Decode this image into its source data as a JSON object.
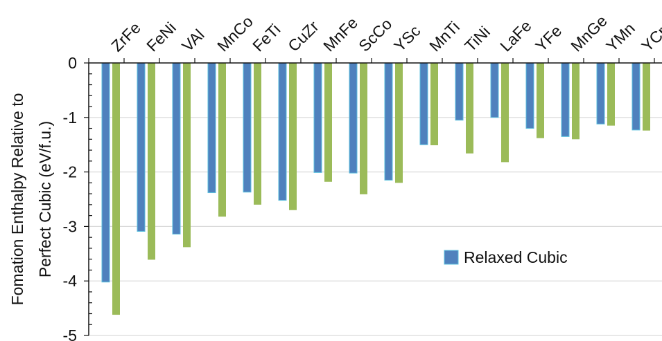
{
  "chart_data": {
    "type": "bar",
    "title": "",
    "xlabel": "",
    "ylabel_lines": [
      "Fomation Enthalpy Relative to",
      "Perfect Cubic (eV/f.u.)"
    ],
    "categories": [
      "ZrFe",
      "FeNi",
      "VAl",
      "MnCo",
      "FeTi",
      "CuZr",
      "MnFe",
      "ScCo",
      "YSc",
      "MnTi",
      "TiNi",
      "LaFe",
      "YFe",
      "MnGe",
      "YMn",
      "YCr"
    ],
    "series": [
      {
        "name": "Relaxed Cubic",
        "color": "#4f81bd",
        "values": [
          -4.02,
          -3.09,
          -3.14,
          -2.38,
          -2.37,
          -2.52,
          -2.01,
          -2.02,
          -2.15,
          -1.5,
          -1.05,
          -1.0,
          -1.2,
          -1.35,
          -1.12,
          -1.23
        ]
      },
      {
        "color": "#9bbb59",
        "values": [
          -4.62,
          -3.61,
          -3.38,
          -2.82,
          -2.6,
          -2.7,
          -2.18,
          -2.41,
          -2.2,
          -1.51,
          -1.66,
          -1.82,
          -1.38,
          -1.4,
          -1.15,
          -1.24
        ]
      }
    ],
    "y_ticks": [
      0,
      -1,
      -2,
      -3,
      -4,
      -5
    ],
    "ylim": [
      -5,
      0
    ],
    "grid": true,
    "x_axis_position": "top",
    "legend_position": "lower-right",
    "legend": [
      "Relaxed Cubic"
    ]
  }
}
